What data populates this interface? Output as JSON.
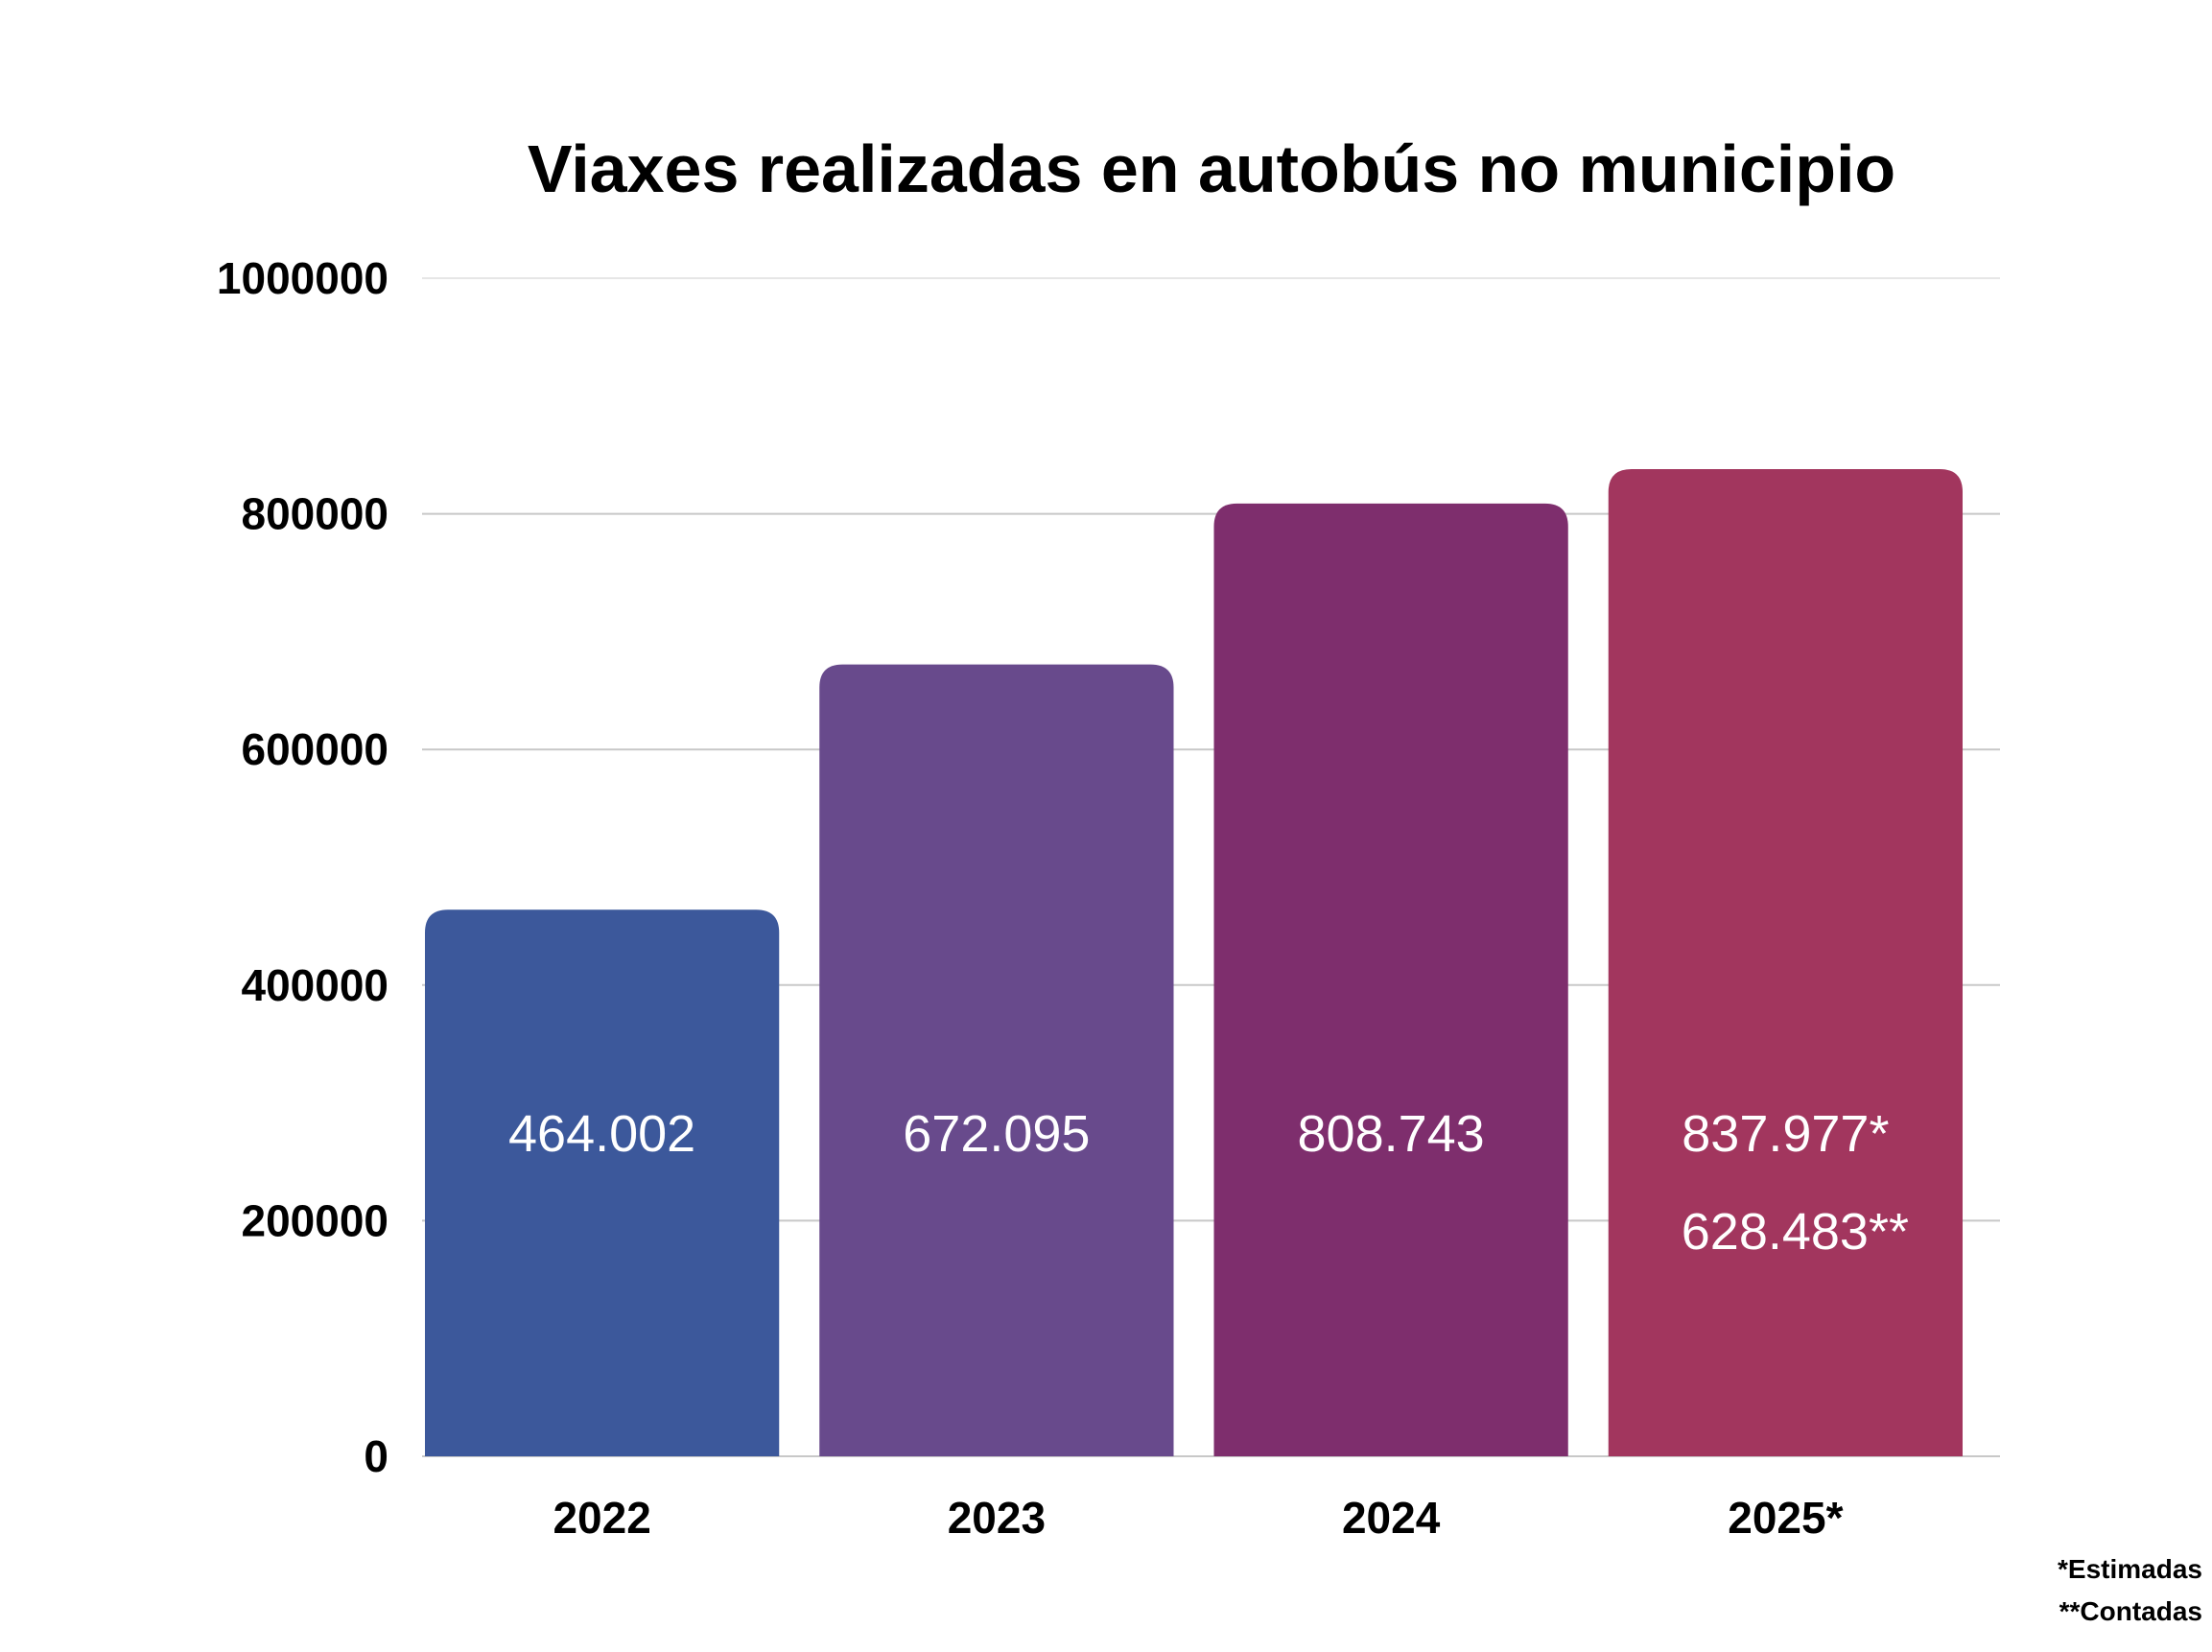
{
  "chart_data": {
    "type": "bar",
    "title": "Viaxes realizadas en autobús no municipio",
    "categories": [
      "2022",
      "2023",
      "2024",
      "2025*"
    ],
    "values": [
      464002,
      672095,
      808743,
      837977
    ],
    "value_labels": [
      "464.002",
      "672.095",
      "808.743",
      "837.977*"
    ],
    "extra_labels": [
      {
        "category": "2025*",
        "value": 628483,
        "label": "628.483**"
      }
    ],
    "colors": [
      "#3c589b",
      "#684a8c",
      "#7e2e6d",
      "#a2365e"
    ],
    "ylim": [
      0,
      1000000
    ],
    "yticks": [
      0,
      200000,
      400000,
      600000,
      800000,
      1000000
    ],
    "ytick_labels": [
      "0",
      "200000",
      "400000",
      "600000",
      "800000",
      "1000000"
    ],
    "grid": true,
    "gridline_color": "#c8c8c8",
    "xlabel": "",
    "ylabel": "",
    "legend": "none"
  },
  "footnotes": {
    "estimated": "*Estimadas",
    "counted": "**Contadas"
  }
}
